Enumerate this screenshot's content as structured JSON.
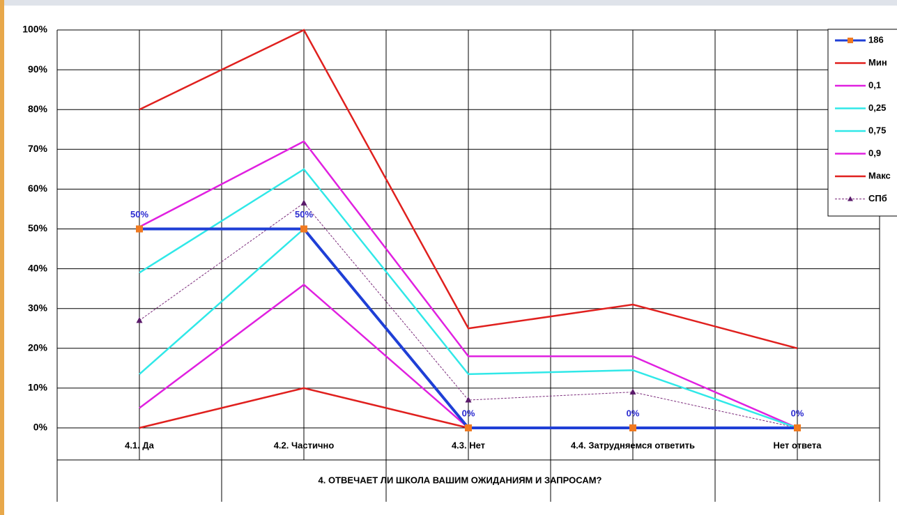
{
  "chart_data": {
    "type": "line",
    "x_axis_title": "4. ОТВЕЧАЕТ ЛИ ШКОЛА ВАШИМ ОЖИДАНИЯМ И ЗАПРОСАМ?",
    "categories": [
      "4.1. Да",
      "4.2. Частично",
      "4.3. Нет",
      "4.4. Затрудняемся ответить",
      "Нет ответа"
    ],
    "ylim": [
      0,
      100
    ],
    "yticks": [
      {
        "value": 0,
        "label": "0%"
      },
      {
        "value": 10,
        "label": "10%"
      },
      {
        "value": 20,
        "label": "20%"
      },
      {
        "value": 30,
        "label": "30%"
      },
      {
        "value": 40,
        "label": "40%"
      },
      {
        "value": 50,
        "label": "50%"
      },
      {
        "value": 60,
        "label": "60%"
      },
      {
        "value": 70,
        "label": "70%"
      },
      {
        "value": 80,
        "label": "80%"
      },
      {
        "value": 90,
        "label": "90%"
      },
      {
        "value": 100,
        "label": "100%"
      }
    ],
    "grid": true,
    "legend": "right",
    "series": [
      {
        "name": "186",
        "color": "#1f3fd6",
        "marker": "square",
        "marker_color": "#f07a20",
        "values": [
          50,
          50,
          0,
          0,
          0
        ],
        "value_labels": [
          "50%",
          "50%",
          "0%",
          "0%",
          "0%"
        ]
      },
      {
        "name": "Мин",
        "color": "#e0201e",
        "values": [
          0,
          10,
          0,
          0,
          0
        ]
      },
      {
        "name": "0,1",
        "color": "#e020e0",
        "values": [
          5,
          36,
          0,
          0,
          0
        ]
      },
      {
        "name": "0,25",
        "color": "#30e8e8",
        "values": [
          13.5,
          50,
          0,
          0,
          0
        ]
      },
      {
        "name": "0,75",
        "color": "#30e8e8",
        "values": [
          39,
          65,
          13.5,
          14.5,
          0
        ]
      },
      {
        "name": "0,9",
        "color": "#e020e0",
        "values": [
          50.5,
          72,
          18,
          18,
          0
        ]
      },
      {
        "name": "Макс",
        "color": "#e0201e",
        "values": [
          80,
          100,
          25,
          31,
          20
        ]
      },
      {
        "name": "СПб",
        "color": "#7a2a7a",
        "marker": "triangle",
        "marker_color": "#5a1a6a",
        "dashed": true,
        "values": [
          27,
          56.5,
          7,
          9,
          0
        ]
      }
    ]
  }
}
